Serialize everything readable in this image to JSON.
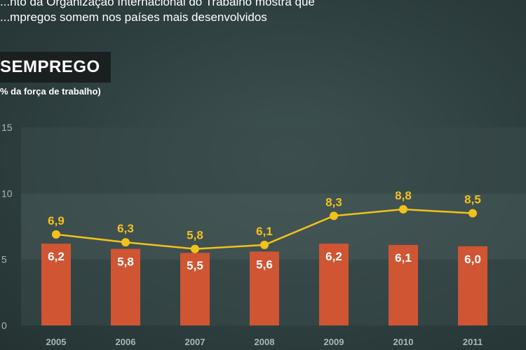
{
  "header": {
    "subtitle": "...nto da Organização Internacional do Trabalho mostra que\n...mpregos somem nos países mais desenvolvidos",
    "title": "SEMPREGO",
    "unit": "% da força de trabalho)"
  },
  "colors": {
    "bar": "#cf5533",
    "line": "#f2c21b",
    "band_light": "#4a5b5b",
    "band_dark": "#3b4b4b"
  },
  "chart_data": {
    "type": "bar",
    "categories": [
      "2005",
      "2006",
      "2007",
      "2008",
      "2009",
      "2010",
      "2011"
    ],
    "series": [
      {
        "type": "bar",
        "values": [
          6.2,
          5.8,
          5.5,
          5.6,
          6.2,
          6.1,
          6.0
        ],
        "labels": [
          "6,2",
          "5,8",
          "5,5",
          "5,6",
          "6,2",
          "6,1",
          "6,0"
        ]
      },
      {
        "type": "line",
        "values": [
          6.9,
          6.3,
          5.8,
          6.1,
          8.3,
          8.8,
          8.5
        ],
        "labels": [
          "6,9",
          "6,3",
          "5,8",
          "6,1",
          "8,3",
          "8,8",
          "8,5"
        ]
      }
    ],
    "yticks": [
      "0",
      "5",
      "10",
      "15"
    ],
    "ylim": [
      0,
      15
    ],
    "grid": "alternating horizontal bands"
  }
}
